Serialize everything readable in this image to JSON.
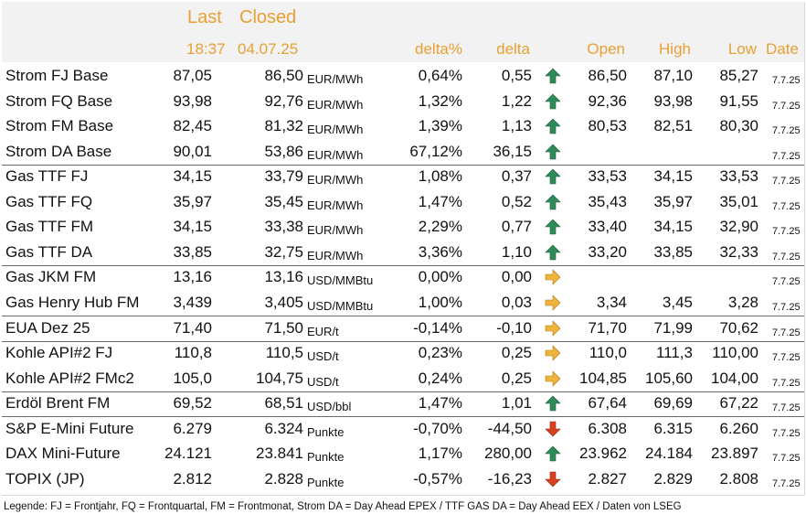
{
  "header": {
    "last_label": "Last",
    "closed_label": "Closed",
    "last_time": "18:37",
    "closed_date": "04.07.25",
    "delta_pct_label": "delta%",
    "delta_label": "delta",
    "open_label": "Open",
    "high_label": "High",
    "low_label": "Low",
    "date_label": "Date"
  },
  "colors": {
    "header_text": "#e8a032",
    "header_bg": "#f2f2f2",
    "arrow_up": "#2e8b57",
    "arrow_side": "#f0b43c",
    "arrow_down": "#d9411e"
  },
  "rows": [
    {
      "name": "Strom FJ Base",
      "last": "87,05",
      "closed": "86,50",
      "unit": "EUR/MWh",
      "delta_pct": "0,64%",
      "delta": "0,55",
      "trend": "up",
      "open": "86,50",
      "high": "87,10",
      "low": "85,27",
      "date": "7.7.25"
    },
    {
      "name": "Strom FQ Base",
      "last": "93,98",
      "closed": "92,76",
      "unit": "EUR/MWh",
      "delta_pct": "1,32%",
      "delta": "1,22",
      "trend": "up",
      "open": "92,36",
      "high": "93,98",
      "low": "91,55",
      "date": "7.7.25"
    },
    {
      "name": "Strom FM Base",
      "last": "82,45",
      "closed": "81,32",
      "unit": "EUR/MWh",
      "delta_pct": "1,39%",
      "delta": "1,13",
      "trend": "up",
      "open": "80,53",
      "high": "82,51",
      "low": "80,30",
      "date": "7.7.25"
    },
    {
      "name": "Strom DA Base",
      "last": "90,01",
      "closed": "53,86",
      "unit": "EUR/MWh",
      "delta_pct": "67,12%",
      "delta": "36,15",
      "trend": "up",
      "open": "",
      "high": "",
      "low": "",
      "date": "7.7.25"
    },
    {
      "name": "Gas TTF FJ",
      "last": "34,15",
      "closed": "33,79",
      "unit": "EUR/MWh",
      "delta_pct": "1,08%",
      "delta": "0,37",
      "trend": "up",
      "open": "33,53",
      "high": "34,15",
      "low": "33,53",
      "date": "7.7.25"
    },
    {
      "name": "Gas TTF FQ",
      "last": "35,97",
      "closed": "35,45",
      "unit": "EUR/MWh",
      "delta_pct": "1,47%",
      "delta": "0,52",
      "trend": "up",
      "open": "35,43",
      "high": "35,97",
      "low": "35,01",
      "date": "7.7.25"
    },
    {
      "name": "Gas TTF FM",
      "last": "34,15",
      "closed": "33,38",
      "unit": "EUR/MWh",
      "delta_pct": "2,29%",
      "delta": "0,77",
      "trend": "up",
      "open": "33,40",
      "high": "34,15",
      "low": "32,90",
      "date": "7.7.25"
    },
    {
      "name": "Gas TTF DA",
      "last": "33,85",
      "closed": "32,75",
      "unit": "EUR/MWh",
      "delta_pct": "3,36%",
      "delta": "1,10",
      "trend": "up",
      "open": "33,20",
      "high": "33,85",
      "low": "32,33",
      "date": "7.7.25"
    },
    {
      "name": "Gas JKM FM",
      "last": "13,16",
      "closed": "13,16",
      "unit": "USD/MMBtu",
      "delta_pct": "0,00%",
      "delta": "0,00",
      "trend": "side",
      "open": "",
      "high": "",
      "low": "",
      "date": "7.7.25"
    },
    {
      "name": "Gas Henry Hub FM",
      "last": "3,439",
      "closed": "3,405",
      "unit": "USD/MMBtu",
      "delta_pct": "1,00%",
      "delta": "0,03",
      "trend": "side",
      "open": "3,34",
      "high": "3,45",
      "low": "3,28",
      "date": "7.7.25"
    },
    {
      "name": "EUA Dez 25",
      "last": "71,40",
      "closed": "71,50",
      "unit": "EUR/t",
      "delta_pct": "-0,14%",
      "delta": "-0,10",
      "trend": "side",
      "open": "71,70",
      "high": "71,99",
      "low": "70,62",
      "date": "7.7.25"
    },
    {
      "name": "Kohle API#2 FJ",
      "last": "110,8",
      "closed": "110,5",
      "unit": "USD/t",
      "delta_pct": "0,23%",
      "delta": "0,25",
      "trend": "side",
      "open": "110,0",
      "high": "111,3",
      "low": "110,00",
      "date": "7.7.25"
    },
    {
      "name": "Kohle API#2 FMc2",
      "last": "105,0",
      "closed": "104,75",
      "unit": "USD/t",
      "delta_pct": "0,24%",
      "delta": "0,25",
      "trend": "side",
      "open": "104,85",
      "high": "105,60",
      "low": "104,00",
      "date": "7.7.25"
    },
    {
      "name": "Erdöl Brent FM",
      "last": "69,52",
      "closed": "68,51",
      "unit": "USD/bbl",
      "delta_pct": "1,47%",
      "delta": "1,01",
      "trend": "up",
      "open": "67,64",
      "high": "69,69",
      "low": "67,22",
      "date": "7.7.25"
    },
    {
      "name": "S&P E-Mini Future",
      "last": "6.279",
      "closed": "6.324",
      "unit": "Punkte",
      "delta_pct": "-0,70%",
      "delta": "-44,50",
      "trend": "down",
      "open": "6.308",
      "high": "6.315",
      "low": "6.260",
      "date": "7.7.25"
    },
    {
      "name": "DAX Mini-Future",
      "last": "24.121",
      "closed": "23.841",
      "unit": "Punkte",
      "delta_pct": "1,17%",
      "delta": "280,00",
      "trend": "up",
      "open": "23.962",
      "high": "24.184",
      "low": "23.897",
      "date": "7.7.25"
    },
    {
      "name": "TOPIX (JP)",
      "last": "2.812",
      "closed": "2.828",
      "unit": "Punkte",
      "delta_pct": "-0,57%",
      "delta": "-16,23",
      "trend": "down",
      "open": "2.827",
      "high": "2.829",
      "low": "2.808",
      "date": "7.7.25"
    }
  ],
  "legend": "Legende: FJ = Frontjahr, FQ = Frontquartal, FM = Frontmonat, Strom DA = Day Ahead EPEX / TTF GAS DA = Day Ahead EEX / Daten von LSEG"
}
